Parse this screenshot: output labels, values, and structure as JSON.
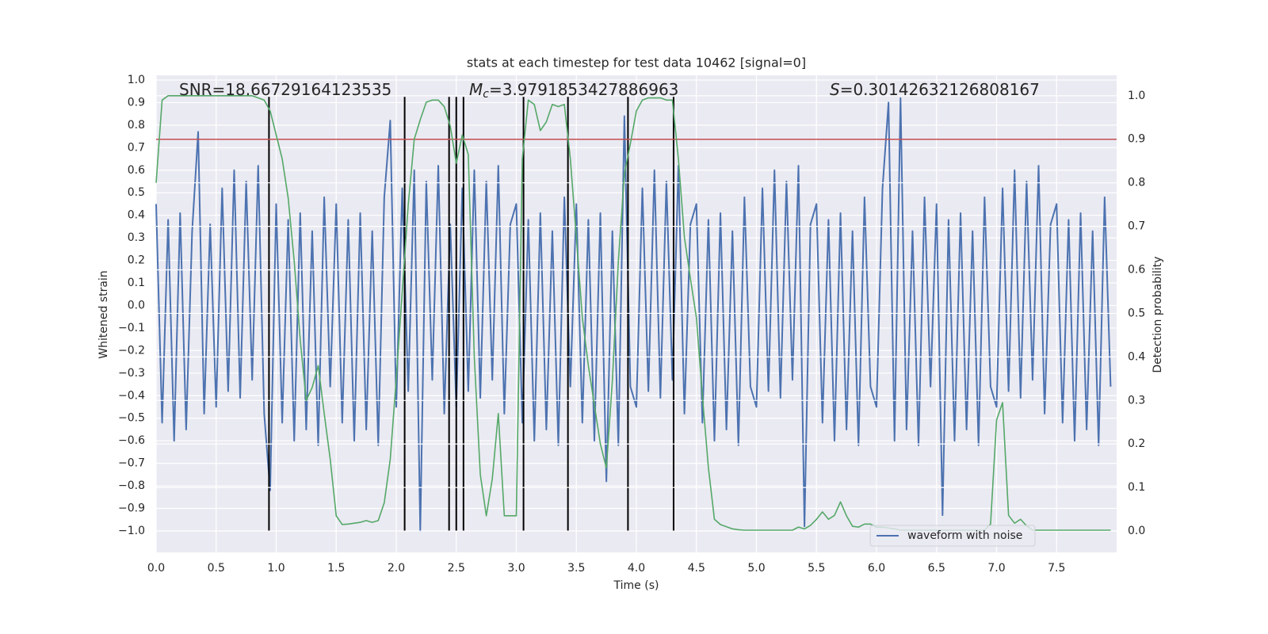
{
  "chart_data": {
    "type": "line",
    "title": "stats at each timestep for test data 10462 [signal=0]",
    "x_label": "Time (s)",
    "y_label": "Whitened strain",
    "y2_label": "Detection probability",
    "xlim": [
      0,
      8
    ],
    "ylim": [
      -1.095,
      1.021
    ],
    "y2lim": [
      -0.049,
      1.047
    ],
    "xticks": [
      {
        "value": 0,
        "label": "0.0"
      },
      {
        "value": 0.5,
        "label": "0.5"
      },
      {
        "value": 1,
        "label": "1.0"
      },
      {
        "value": 1.5,
        "label": "1.5"
      },
      {
        "value": 2,
        "label": "2.0"
      },
      {
        "value": 2.5,
        "label": "2.5"
      },
      {
        "value": 3,
        "label": "3.0"
      },
      {
        "value": 3.5,
        "label": "3.5"
      },
      {
        "value": 4,
        "label": "4.0"
      },
      {
        "value": 4.5,
        "label": "4.5"
      },
      {
        "value": 5,
        "label": "5.0"
      },
      {
        "value": 5.5,
        "label": "5.5"
      },
      {
        "value": 6,
        "label": "6.0"
      },
      {
        "value": 6.5,
        "label": "6.5"
      },
      {
        "value": 7,
        "label": "7.0"
      },
      {
        "value": 7.5,
        "label": "7.5"
      }
    ],
    "yticks": [
      {
        "value": -1,
        "label": "−1.0"
      },
      {
        "value": -0.9,
        "label": "−0.9"
      },
      {
        "value": -0.8,
        "label": "−0.8"
      },
      {
        "value": -0.7,
        "label": "−0.7"
      },
      {
        "value": -0.6,
        "label": "−0.6"
      },
      {
        "value": -0.5,
        "label": "−0.5"
      },
      {
        "value": -0.4,
        "label": "−0.4"
      },
      {
        "value": -0.3,
        "label": "−0.3"
      },
      {
        "value": -0.2,
        "label": "−0.2"
      },
      {
        "value": -0.1,
        "label": "−0.1"
      },
      {
        "value": 0,
        "label": "0.0"
      },
      {
        "value": 0.1,
        "label": "0.1"
      },
      {
        "value": 0.2,
        "label": "0.2"
      },
      {
        "value": 0.3,
        "label": "0.3"
      },
      {
        "value": 0.4,
        "label": "0.4"
      },
      {
        "value": 0.5,
        "label": "0.5"
      },
      {
        "value": 0.6,
        "label": "0.6"
      },
      {
        "value": 0.7,
        "label": "0.7"
      },
      {
        "value": 0.8,
        "label": "0.8"
      },
      {
        "value": 0.9,
        "label": "0.9"
      },
      {
        "value": 1,
        "label": "1.0"
      }
    ],
    "y2ticks": [
      {
        "value": 0,
        "label": "0.0"
      },
      {
        "value": 0.1,
        "label": "0.1"
      },
      {
        "value": 0.2,
        "label": "0.2"
      },
      {
        "value": 0.3,
        "label": "0.3"
      },
      {
        "value": 0.4,
        "label": "0.4"
      },
      {
        "value": 0.5,
        "label": "0.5"
      },
      {
        "value": 0.6,
        "label": "0.6"
      },
      {
        "value": 0.7,
        "label": "0.7"
      },
      {
        "value": 0.8,
        "label": "0.8"
      },
      {
        "value": 0.9,
        "label": "0.9"
      },
      {
        "value": 1,
        "label": "1.0"
      }
    ],
    "grid": true,
    "legend": "lower right",
    "annotations": [
      {
        "text": "SNR=18.66729164123535"
      },
      {
        "symbol": "M",
        "subscript": "c",
        "text": "=3.9791853427886963"
      },
      {
        "symbol": "S",
        "text": "=0.30142632126808167"
      }
    ],
    "x": [
      0,
      0.05,
      0.1,
      0.15,
      0.2,
      0.25,
      0.3,
      0.35,
      0.4,
      0.45,
      0.5,
      0.55,
      0.6,
      0.65,
      0.7,
      0.75,
      0.8,
      0.85,
      0.9,
      0.95,
      1,
      1.05,
      1.1,
      1.15,
      1.2,
      1.25,
      1.3,
      1.35,
      1.4,
      1.45,
      1.5,
      1.55,
      1.6,
      1.65,
      1.7,
      1.75,
      1.8,
      1.85,
      1.9,
      1.95,
      2,
      2.05,
      2.1,
      2.15,
      2.2,
      2.25,
      2.3,
      2.35,
      2.4,
      2.45,
      2.5,
      2.55,
      2.6,
      2.65,
      2.7,
      2.75,
      2.8,
      2.85,
      2.9,
      2.95,
      3,
      3.05,
      3.1,
      3.15,
      3.2,
      3.25,
      3.3,
      3.35,
      3.4,
      3.45,
      3.5,
      3.55,
      3.6,
      3.65,
      3.7,
      3.75,
      3.8,
      3.85,
      3.9,
      3.95,
      4,
      4.05,
      4.1,
      4.15,
      4.2,
      4.25,
      4.3,
      4.35,
      4.4,
      4.45,
      4.5,
      4.55,
      4.6,
      4.65,
      4.7,
      4.75,
      4.8,
      4.85,
      4.9,
      4.95,
      5,
      5.05,
      5.1,
      5.15,
      5.2,
      5.25,
      5.3,
      5.35,
      5.4,
      5.45,
      5.5,
      5.55,
      5.6,
      5.65,
      5.7,
      5.75,
      5.8,
      5.85,
      5.9,
      5.95,
      6,
      6.05,
      6.1,
      6.15,
      6.2,
      6.25,
      6.3,
      6.35,
      6.4,
      6.45,
      6.5,
      6.55,
      6.6,
      6.65,
      6.7,
      6.75,
      6.8,
      6.85,
      6.9,
      6.95,
      7,
      7.05,
      7.1,
      7.15,
      7.2,
      7.25,
      7.3,
      7.35,
      7.4,
      7.45,
      7.5,
      7.55,
      7.6,
      7.65,
      7.7,
      7.75,
      7.8,
      7.85,
      7.9,
      7.95
    ],
    "series": [
      {
        "name": "waveform with noise",
        "color": "#4c72b0",
        "values": [
          0.45,
          -0.52,
          0.38,
          -0.6,
          0.41,
          -0.55,
          0.33,
          0.77,
          -0.48,
          0.36,
          -0.45,
          0.52,
          -0.38,
          0.6,
          -0.41,
          0.55,
          -0.33,
          0.62,
          -0.48,
          -0.82,
          0.45,
          -0.52,
          0.38,
          -0.6,
          0.41,
          -0.55,
          0.33,
          -0.62,
          0.48,
          -0.36,
          0.45,
          -0.52,
          0.38,
          -0.6,
          0.41,
          -0.55,
          0.33,
          -0.62,
          0.48,
          0.82,
          -0.45,
          0.52,
          -0.38,
          0.6,
          -1.0,
          0.55,
          -0.33,
          0.62,
          -0.48,
          0.36,
          -0.45,
          0.52,
          -0.38,
          0.6,
          -0.41,
          0.55,
          -0.33,
          0.62,
          -0.48,
          0.36,
          0.45,
          -0.52,
          0.38,
          -0.6,
          0.41,
          -0.55,
          0.33,
          -0.62,
          0.48,
          -0.36,
          0.45,
          -0.52,
          0.38,
          -0.6,
          0.41,
          -0.78,
          0.33,
          -0.62,
          0.84,
          -0.36,
          -0.45,
          0.52,
          -0.38,
          0.6,
          -0.41,
          0.55,
          -0.33,
          0.62,
          -0.48,
          0.36,
          0.45,
          -0.52,
          0.38,
          -0.6,
          0.41,
          -0.55,
          0.33,
          -0.62,
          0.48,
          -0.36,
          -0.45,
          0.52,
          -0.38,
          0.6,
          -0.41,
          0.55,
          -0.33,
          0.62,
          -0.98,
          0.36,
          0.45,
          -0.52,
          0.38,
          -0.6,
          0.41,
          -0.55,
          0.33,
          -0.62,
          0.48,
          -0.36,
          -0.45,
          0.52,
          0.9,
          -0.6,
          0.92,
          -0.55,
          0.33,
          -0.62,
          0.48,
          -0.36,
          0.45,
          -0.93,
          0.38,
          -0.6,
          0.41,
          -0.55,
          0.33,
          -0.62,
          0.48,
          -0.36,
          -0.45,
          0.52,
          -0.38,
          0.6,
          -0.41,
          0.55,
          -0.33,
          0.62,
          -0.48,
          0.36,
          0.45,
          -0.52,
          0.38,
          -0.6,
          0.41,
          -0.55,
          0.33,
          -0.62,
          0.48,
          -0.36
        ]
      },
      {
        "color": "#55a868",
        "axis": "y2",
        "values": [
          0.8,
          0.99,
          1,
          1,
          1,
          1,
          1,
          1,
          1,
          1,
          1,
          1,
          1,
          1,
          1,
          1,
          1,
          0.995,
          0.99,
          0.965,
          0.91,
          0.855,
          0.765,
          0.62,
          0.44,
          0.3,
          0.33,
          0.38,
          0.27,
          0.165,
          0.035,
          0.015,
          0.016,
          0.018,
          0.02,
          0.024,
          0.02,
          0.024,
          0.065,
          0.165,
          0.35,
          0.55,
          0.75,
          0.9,
          0.945,
          0.985,
          0.99,
          0.99,
          0.975,
          0.93,
          0.845,
          0.91,
          0.865,
          0.4,
          0.13,
          0.035,
          0.12,
          0.27,
          0.035,
          0.035,
          0.035,
          0.855,
          0.99,
          0.98,
          0.92,
          0.94,
          0.98,
          0.975,
          0.98,
          0.855,
          0.675,
          0.49,
          0.38,
          0.29,
          0.2,
          0.145,
          0.345,
          0.62,
          0.82,
          0.89,
          0.965,
          0.99,
          0.995,
          0.995,
          0.995,
          0.99,
          0.99,
          0.855,
          0.675,
          0.58,
          0.49,
          0.31,
          0.145,
          0.027,
          0.015,
          0.01,
          0.005,
          0.003,
          0.002,
          0.002,
          0.002,
          0.002,
          0.002,
          0.002,
          0.002,
          0.002,
          0.002,
          0.009,
          0.005,
          0.013,
          0.027,
          0.044,
          0.027,
          0.036,
          0.067,
          0.035,
          0.011,
          0.009,
          0.016,
          0.016,
          0.009,
          0.009,
          0.007,
          0.005,
          0.002,
          0.002,
          0.002,
          0.002,
          0.002,
          0.002,
          0.002,
          0.002,
          0.002,
          0.002,
          0.002,
          0.002,
          0.002,
          0.002,
          0.002,
          0.016,
          0.255,
          0.295,
          0.036,
          0.018,
          0.027,
          0.012,
          0.002,
          0.002,
          0.002,
          0.002,
          0.002,
          0.002,
          0.002,
          0.002,
          0.002,
          0.002,
          0.002,
          0.002,
          0.002,
          0.002
        ]
      }
    ],
    "hline": {
      "value": 0.9,
      "axis": "y2",
      "color": "#c44e52"
    },
    "vlines": {
      "x": [
        0.94,
        2.07,
        2.44,
        2.5,
        2.56,
        3.06,
        3.43,
        3.93,
        4.31
      ],
      "ymin": -1.0,
      "ymax": 0.925,
      "color": "#000000"
    }
  }
}
